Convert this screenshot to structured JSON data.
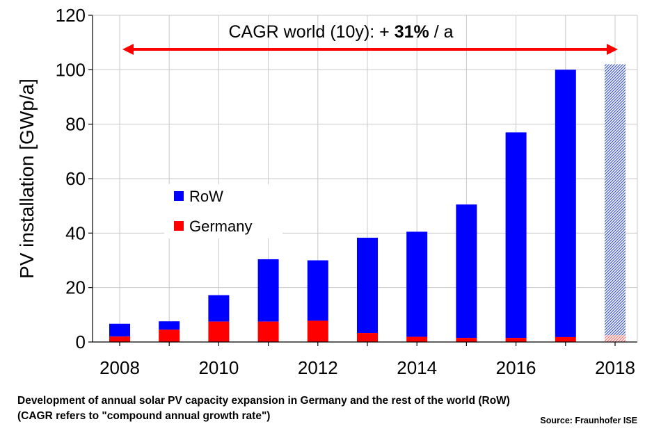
{
  "chart_data": {
    "type": "bar",
    "stacked": true,
    "categories": [
      "2008",
      "2009",
      "2010",
      "2011",
      "2012",
      "2013",
      "2014",
      "2015",
      "2016",
      "2017",
      "2018"
    ],
    "series": [
      {
        "name": "Germany",
        "color": "#ff0000",
        "values": [
          2,
          4.5,
          7.5,
          7.5,
          7.8,
          3.3,
          1.9,
          1.5,
          1.5,
          1.8,
          2.5
        ]
      },
      {
        "name": "RoW",
        "color": "#0000ff",
        "values": [
          4.7,
          3.1,
          9.7,
          22.9,
          22.2,
          35.0,
          38.6,
          49.0,
          75.5,
          98.2,
          99.5
        ]
      }
    ],
    "projected_categories": [
      "2018"
    ],
    "xtick_labels": [
      "2008",
      "2010",
      "2012",
      "2014",
      "2016",
      "2018"
    ],
    "ylabel": "PV installation [GWp/a]",
    "ylim": [
      0,
      120
    ],
    "yticks": [
      0,
      20,
      40,
      60,
      80,
      100,
      120
    ],
    "legend": {
      "placement": "center-left",
      "entries": [
        "RoW",
        "Germany"
      ]
    },
    "annotation": {
      "prefix": "CAGR world (10y):  + ",
      "value": "31%",
      "suffix": " / a",
      "arrow_color": "#ff0000"
    },
    "grid": true
  },
  "caption": {
    "line1": "Development of annual solar PV capacity expansion in Germany and the rest of the world (RoW)",
    "line2": "(CAGR refers to \"compound annual growth rate\")"
  },
  "source": "Source: Fraunhofer ISE"
}
